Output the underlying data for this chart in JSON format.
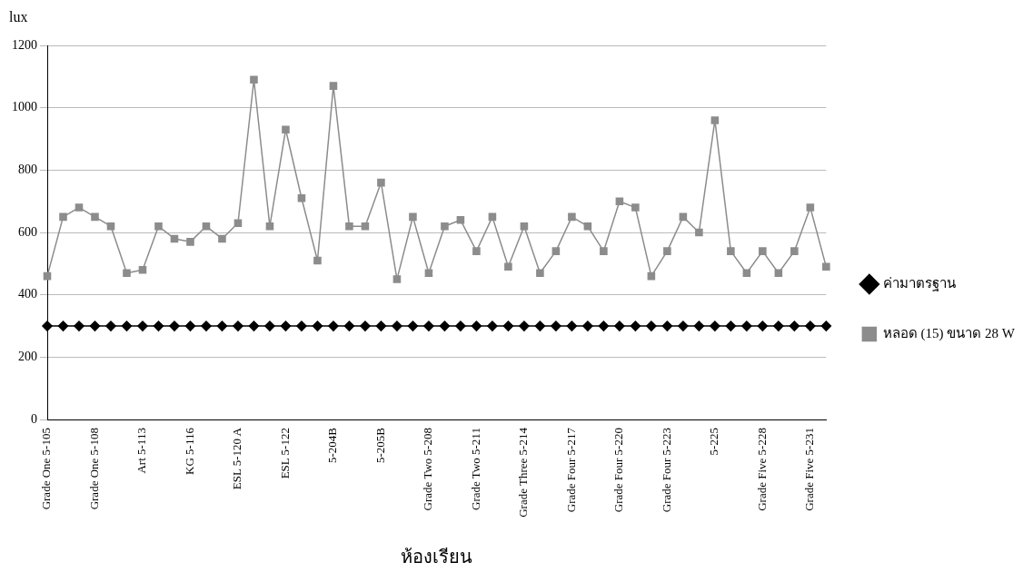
{
  "chart_data": {
    "type": "line",
    "ylabel": "lux",
    "xlabel": "ห้องเรียน",
    "categories": [
      "Grade One 5-105",
      null,
      null,
      "Grade One 5-108",
      null,
      null,
      "Art 5-113",
      null,
      null,
      "KG 5-116",
      null,
      null,
      "ESL 5-120 A",
      null,
      null,
      "ESL 5-122",
      null,
      null,
      "5-204B",
      null,
      null,
      "5-205B",
      null,
      null,
      "Grade Two 5-208",
      null,
      null,
      "Grade Two 5-211",
      null,
      null,
      "Grade Three 5-214",
      null,
      null,
      "Grade Four 5-217",
      null,
      null,
      "Grade Four 5-220",
      null,
      null,
      "Grade Four 5-223",
      null,
      null,
      "5-225",
      null,
      null,
      "Grade Five 5-228",
      null,
      null,
      "Grade Five 5-231",
      null
    ],
    "series": [
      {
        "name": "ค่ามาตรฐาน",
        "color": "#000000",
        "marker": "diamond",
        "values": [
          300,
          300,
          300,
          300,
          300,
          300,
          300,
          300,
          300,
          300,
          300,
          300,
          300,
          300,
          300,
          300,
          300,
          300,
          300,
          300,
          300,
          300,
          300,
          300,
          300,
          300,
          300,
          300,
          300,
          300,
          300,
          300,
          300,
          300,
          300,
          300,
          300,
          300,
          300,
          300,
          300,
          300,
          300,
          300,
          300,
          300,
          300,
          300,
          300,
          300
        ]
      },
      {
        "name": "หลอด (15) ขนาด 28 W",
        "color": "#8c8c8c",
        "marker": "square",
        "values": [
          460,
          650,
          680,
          650,
          620,
          470,
          480,
          620,
          580,
          570,
          620,
          580,
          630,
          1090,
          620,
          930,
          710,
          510,
          1070,
          620,
          620,
          760,
          450,
          650,
          470,
          620,
          640,
          540,
          650,
          490,
          620,
          470,
          540,
          650,
          620,
          540,
          700,
          680,
          460,
          540,
          650,
          600,
          960,
          540,
          470,
          540,
          470,
          540,
          680,
          490
        ]
      }
    ],
    "ylim": [
      0,
      1200
    ],
    "yticks": [
      0,
      200,
      400,
      600,
      800,
      1000,
      1200
    ],
    "grid": "y",
    "legend": "right"
  }
}
